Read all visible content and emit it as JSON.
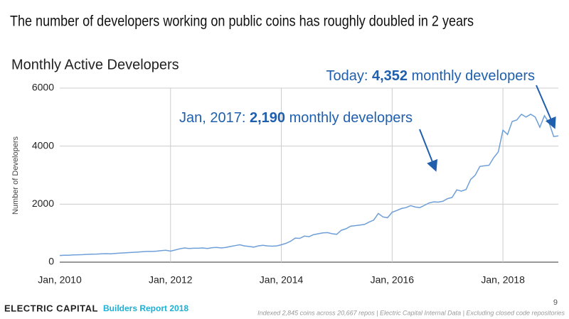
{
  "header": {
    "title": "The number of developers working on public coins has roughly doubled in 2 years"
  },
  "chart_data": {
    "type": "line",
    "title": "Monthly Active Developers",
    "y_label": "Number of Developers",
    "x": [
      "2010-01",
      "2010-02",
      "2010-03",
      "2010-04",
      "2010-05",
      "2010-06",
      "2010-07",
      "2010-08",
      "2010-09",
      "2010-10",
      "2010-11",
      "2010-12",
      "2011-01",
      "2011-02",
      "2011-03",
      "2011-04",
      "2011-05",
      "2011-06",
      "2011-07",
      "2011-08",
      "2011-09",
      "2011-10",
      "2011-11",
      "2011-12",
      "2012-01",
      "2012-02",
      "2012-03",
      "2012-04",
      "2012-05",
      "2012-06",
      "2012-07",
      "2012-08",
      "2012-09",
      "2012-10",
      "2012-11",
      "2012-12",
      "2013-01",
      "2013-02",
      "2013-03",
      "2013-04",
      "2013-05",
      "2013-06",
      "2013-07",
      "2013-08",
      "2013-09",
      "2013-10",
      "2013-11",
      "2013-12",
      "2014-01",
      "2014-02",
      "2014-03",
      "2014-04",
      "2014-05",
      "2014-06",
      "2014-07",
      "2014-08",
      "2014-09",
      "2014-10",
      "2014-11",
      "2014-12",
      "2015-01",
      "2015-02",
      "2015-03",
      "2015-04",
      "2015-05",
      "2015-06",
      "2015-07",
      "2015-08",
      "2015-09",
      "2015-10",
      "2015-11",
      "2015-12",
      "2016-01",
      "2016-02",
      "2016-03",
      "2016-04",
      "2016-05",
      "2016-06",
      "2016-07",
      "2016-08",
      "2016-09",
      "2016-10",
      "2016-11",
      "2016-12",
      "2017-01",
      "2017-02",
      "2017-03",
      "2017-04",
      "2017-05",
      "2017-06",
      "2017-07",
      "2017-08",
      "2017-09",
      "2017-10",
      "2017-11",
      "2017-12",
      "2018-01",
      "2018-02",
      "2018-03",
      "2018-04",
      "2018-05",
      "2018-06",
      "2018-07",
      "2018-08",
      "2018-09",
      "2018-10",
      "2018-11",
      "2018-12",
      "2019-01"
    ],
    "series": [
      {
        "name": "Monthly Active Developers",
        "color": "#6f9fd8",
        "values": [
          230,
          240,
          240,
          250,
          255,
          260,
          270,
          275,
          280,
          290,
          295,
          290,
          300,
          310,
          320,
          330,
          340,
          350,
          360,
          370,
          370,
          380,
          400,
          410,
          380,
          420,
          460,
          490,
          470,
          480,
          480,
          490,
          470,
          500,
          510,
          490,
          510,
          540,
          570,
          600,
          560,
          540,
          520,
          560,
          580,
          560,
          550,
          560,
          600,
          650,
          720,
          830,
          820,
          900,
          880,
          950,
          980,
          1010,
          1020,
          980,
          960,
          1100,
          1150,
          1240,
          1260,
          1280,
          1300,
          1380,
          1450,
          1680,
          1560,
          1530,
          1720,
          1780,
          1850,
          1880,
          1950,
          1900,
          1880,
          1960,
          2040,
          2080,
          2070,
          2100,
          2190,
          2230,
          2490,
          2450,
          2500,
          2850,
          3000,
          3300,
          3320,
          3340,
          3600,
          3800,
          4550,
          4400,
          4850,
          4900,
          5100,
          5000,
          5100,
          5000,
          4650,
          5050,
          4800,
          4330,
          4352
        ]
      }
    ],
    "xlim": [
      "2010-01",
      "2019-01"
    ],
    "xticks": [
      {
        "value": "2010-01",
        "label": "Jan, 2010"
      },
      {
        "value": "2012-01",
        "label": "Jan, 2012"
      },
      {
        "value": "2014-01",
        "label": "Jan, 2014"
      },
      {
        "value": "2016-01",
        "label": "Jan, 2016"
      },
      {
        "value": "2018-01",
        "label": "Jan, 2018"
      }
    ],
    "ylim": [
      0,
      6000
    ],
    "yticks": [
      0,
      2000,
      4000,
      6000
    ],
    "grid": true,
    "annotations": [
      {
        "prefix": "Jan, 2017: ",
        "value": "2,190",
        "suffix": " monthly developers"
      },
      {
        "prefix": "Today: ",
        "value": "4,352",
        "suffix": " monthly developers"
      }
    ]
  },
  "footer": {
    "brand": "ELECTRIC CAPITAL",
    "report": "Builders Report 2018",
    "page": "9",
    "source": "Indexed 2,845 coins across 20,667 repos | Electric Capital Internal Data | Excluding closed code repositories"
  }
}
